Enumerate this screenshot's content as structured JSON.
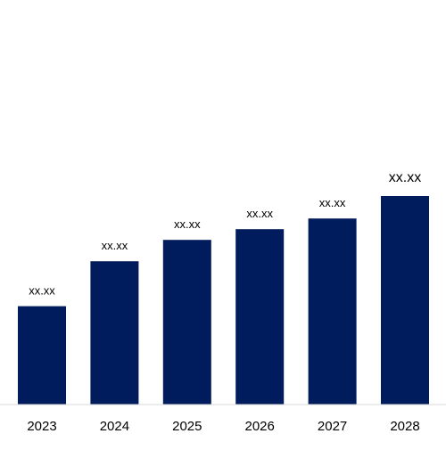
{
  "chart_data": {
    "type": "bar",
    "categories": [
      "2023",
      "2024",
      "2025",
      "2026",
      "2027",
      "2028"
    ],
    "values": [
      46,
      67,
      77,
      82,
      87,
      97.5
    ],
    "data_labels": [
      "xx.xx",
      "xx.xx",
      "xx.xx",
      "xx.xx",
      "xx.xx",
      "xx.xx"
    ],
    "title": "",
    "xlabel": "",
    "ylabel": "",
    "ylim": [
      0,
      135
    ],
    "grid": false,
    "legend": "none",
    "colors": {
      "bar": "#001c5c",
      "axis": "#d9d9d9",
      "text": "#000000"
    }
  }
}
